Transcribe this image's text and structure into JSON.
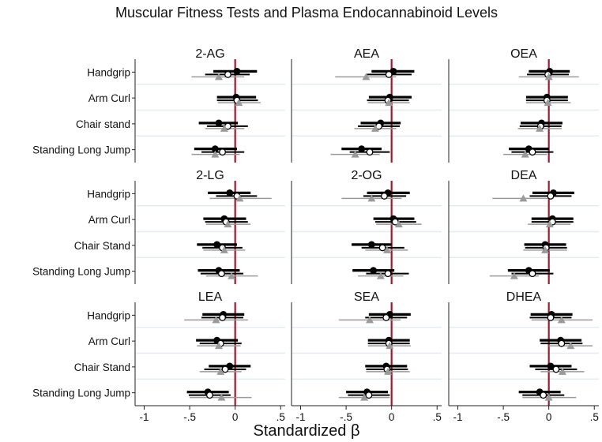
{
  "chart_data": {
    "type": "forest",
    "title": "Muscular Fitness Tests and Plasma Endocannabinoid Levels",
    "xlabel": "Standardized β",
    "xlim": [
      -1.1,
      0.55
    ],
    "xticks": [
      -1,
      -0.5,
      0,
      0.5
    ],
    "xtick_labels": [
      "-1",
      "-.5",
      "0",
      ".5"
    ],
    "reference_line": 0,
    "colors": {
      "reference_line": "#9b1b30",
      "black_series": "#000000",
      "grey_series": "#9a9a9a",
      "white_series_fill": "#ffffff"
    },
    "marker_series": [
      {
        "marker": "filled-circle",
        "color": "#000000"
      },
      {
        "marker": "hollow-circle",
        "color": "#000000"
      },
      {
        "marker": "triangle",
        "color": "#9a9a9a"
      }
    ],
    "panels": [
      {
        "title": "2-AG",
        "row_labels": [
          "Handgrip",
          "Arm Curl",
          "Chair stand",
          "Standing Long Jump"
        ],
        "estimates": [
          [
            {
              "est": 0.02,
              "lo": -0.24,
              "hi": 0.24
            },
            {
              "est": -0.08,
              "lo": -0.33,
              "hi": 0.16
            },
            {
              "est": -0.18,
              "lo": -0.48,
              "hi": 0.1
            }
          ],
          [
            {
              "est": 0.01,
              "lo": -0.2,
              "hi": 0.23
            },
            {
              "est": 0.02,
              "lo": -0.2,
              "hi": 0.25
            },
            {
              "est": 0.04,
              "lo": -0.19,
              "hi": 0.28
            }
          ],
          [
            {
              "est": -0.18,
              "lo": -0.4,
              "hi": 0.03
            },
            {
              "est": -0.08,
              "lo": -0.31,
              "hi": 0.14
            },
            {
              "est": -0.12,
              "lo": -0.33,
              "hi": 0.1
            }
          ],
          [
            {
              "est": -0.22,
              "lo": -0.45,
              "hi": 0.02
            },
            {
              "est": -0.14,
              "lo": -0.37,
              "hi": 0.1
            },
            {
              "est": -0.22,
              "lo": -0.48,
              "hi": 0.05
            }
          ]
        ]
      },
      {
        "title": "AEA",
        "row_labels": [
          "Handgrip",
          "Arm Curl",
          "Chair stand",
          "Standing Long Jump"
        ],
        "estimates": [
          [
            {
              "est": 0.02,
              "lo": -0.22,
              "hi": 0.25
            },
            {
              "est": -0.03,
              "lo": -0.27,
              "hi": 0.22
            },
            {
              "est": -0.28,
              "lo": -0.62,
              "hi": 0.05
            }
          ],
          [
            {
              "est": -0.02,
              "lo": -0.25,
              "hi": 0.22
            },
            {
              "est": -0.04,
              "lo": -0.27,
              "hi": 0.19
            },
            {
              "est": -0.03,
              "lo": -0.26,
              "hi": 0.2
            }
          ],
          [
            {
              "est": -0.12,
              "lo": -0.34,
              "hi": 0.1
            },
            {
              "est": -0.14,
              "lo": -0.37,
              "hi": 0.09
            },
            {
              "est": -0.18,
              "lo": -0.41,
              "hi": 0.05
            }
          ],
          [
            {
              "est": -0.33,
              "lo": -0.55,
              "hi": -0.11
            },
            {
              "est": -0.24,
              "lo": -0.46,
              "hi": -0.02
            },
            {
              "est": -0.4,
              "lo": -0.67,
              "hi": -0.13
            }
          ]
        ]
      },
      {
        "title": "OEA",
        "row_labels": [
          "Handgrip",
          "Arm Curl",
          "Chair stand",
          "Standing Long Jump"
        ],
        "estimates": [
          [
            {
              "est": 0.01,
              "lo": -0.22,
              "hi": 0.23
            },
            {
              "est": -0.01,
              "lo": -0.24,
              "hi": 0.22
            },
            {
              "est": 0.0,
              "lo": -0.33,
              "hi": 0.33
            }
          ],
          [
            {
              "est": -0.02,
              "lo": -0.25,
              "hi": 0.21
            },
            {
              "est": -0.02,
              "lo": -0.25,
              "hi": 0.21
            },
            {
              "est": -0.01,
              "lo": -0.25,
              "hi": 0.24
            }
          ],
          [
            {
              "est": -0.08,
              "lo": -0.31,
              "hi": 0.15
            },
            {
              "est": -0.09,
              "lo": -0.32,
              "hi": 0.14
            },
            {
              "est": -0.1,
              "lo": -0.34,
              "hi": 0.14
            }
          ],
          [
            {
              "est": -0.22,
              "lo": -0.44,
              "hi": 0.0
            },
            {
              "est": -0.18,
              "lo": -0.41,
              "hi": 0.05
            },
            {
              "est": -0.26,
              "lo": -0.5,
              "hi": -0.02
            }
          ]
        ]
      },
      {
        "title": "2-LG",
        "row_labels": [
          "Handgrip",
          "Arm Curl",
          "Chair Stand",
          "Standing Long Jump"
        ],
        "estimates": [
          [
            {
              "est": -0.06,
              "lo": -0.3,
              "hi": 0.17
            },
            {
              "est": 0.02,
              "lo": -0.21,
              "hi": 0.24
            },
            {
              "est": 0.05,
              "lo": -0.28,
              "hi": 0.4
            }
          ],
          [
            {
              "est": -0.12,
              "lo": -0.35,
              "hi": 0.12
            },
            {
              "est": -0.1,
              "lo": -0.33,
              "hi": 0.14
            },
            {
              "est": -0.08,
              "lo": -0.32,
              "hi": 0.17
            }
          ],
          [
            {
              "est": -0.2,
              "lo": -0.42,
              "hi": 0.02
            },
            {
              "est": -0.14,
              "lo": -0.36,
              "hi": 0.08
            },
            {
              "est": -0.12,
              "lo": -0.35,
              "hi": 0.11
            }
          ],
          [
            {
              "est": -0.18,
              "lo": -0.41,
              "hi": 0.05
            },
            {
              "est": -0.15,
              "lo": -0.38,
              "hi": 0.09
            },
            {
              "est": -0.04,
              "lo": -0.32,
              "hi": 0.25
            }
          ]
        ]
      },
      {
        "title": "2-OG",
        "row_labels": [
          "Handgrip",
          "Arm Curl",
          "Chair Stand",
          "Standing Long Jump"
        ],
        "estimates": [
          [
            {
              "est": -0.04,
              "lo": -0.27,
              "hi": 0.2
            },
            {
              "est": -0.08,
              "lo": -0.31,
              "hi": 0.16
            },
            {
              "est": -0.22,
              "lo": -0.55,
              "hi": 0.11
            }
          ],
          [
            {
              "est": 0.02,
              "lo": -0.2,
              "hi": 0.25
            },
            {
              "est": 0.04,
              "lo": -0.18,
              "hi": 0.27
            },
            {
              "est": 0.08,
              "lo": -0.17,
              "hi": 0.33
            }
          ],
          [
            {
              "est": -0.22,
              "lo": -0.44,
              "hi": 0.0
            },
            {
              "est": -0.1,
              "lo": -0.33,
              "hi": 0.14
            },
            {
              "est": -0.05,
              "lo": -0.29,
              "hi": 0.18
            }
          ],
          [
            {
              "est": -0.2,
              "lo": -0.43,
              "hi": 0.03
            },
            {
              "est": -0.04,
              "lo": -0.28,
              "hi": 0.19
            },
            {
              "est": -0.12,
              "lo": -0.37,
              "hi": 0.13
            }
          ]
        ]
      },
      {
        "title": "DEA",
        "row_labels": [
          "Handgrip",
          "Arm Curl",
          "Chair Stand",
          "Standing Long Jump"
        ],
        "estimates": [
          [
            {
              "est": 0.05,
              "lo": -0.18,
              "hi": 0.28
            },
            {
              "est": 0.02,
              "lo": -0.21,
              "hi": 0.25
            },
            {
              "est": -0.28,
              "lo": -0.62,
              "hi": 0.05
            }
          ],
          [
            {
              "est": 0.04,
              "lo": -0.19,
              "hi": 0.27
            },
            {
              "est": 0.04,
              "lo": -0.19,
              "hi": 0.27
            },
            {
              "est": 0.01,
              "lo": -0.23,
              "hi": 0.24
            }
          ],
          [
            {
              "est": -0.04,
              "lo": -0.27,
              "hi": 0.19
            },
            {
              "est": -0.03,
              "lo": -0.26,
              "hi": 0.2
            },
            {
              "est": -0.04,
              "lo": -0.28,
              "hi": 0.2
            }
          ],
          [
            {
              "est": -0.22,
              "lo": -0.45,
              "hi": 0.01
            },
            {
              "est": -0.18,
              "lo": -0.41,
              "hi": 0.05
            },
            {
              "est": -0.38,
              "lo": -0.65,
              "hi": -0.11
            }
          ]
        ]
      },
      {
        "title": "LEA",
        "row_labels": [
          "Handgrip",
          "Arm Curl",
          "Chair Stand",
          "Standing Long Jump"
        ],
        "estimates": [
          [
            {
              "est": -0.13,
              "lo": -0.36,
              "hi": 0.1
            },
            {
              "est": -0.14,
              "lo": -0.37,
              "hi": 0.09
            },
            {
              "est": -0.21,
              "lo": -0.56,
              "hi": 0.14
            }
          ],
          [
            {
              "est": -0.2,
              "lo": -0.43,
              "hi": 0.03
            },
            {
              "est": -0.16,
              "lo": -0.39,
              "hi": 0.07
            },
            {
              "est": -0.18,
              "lo": -0.42,
              "hi": 0.06
            }
          ],
          [
            {
              "est": -0.06,
              "lo": -0.29,
              "hi": 0.17
            },
            {
              "est": -0.11,
              "lo": -0.34,
              "hi": 0.12
            },
            {
              "est": -0.16,
              "lo": -0.39,
              "hi": 0.07
            }
          ],
          [
            {
              "est": -0.3,
              "lo": -0.53,
              "hi": -0.07
            },
            {
              "est": -0.28,
              "lo": -0.51,
              "hi": -0.05
            },
            {
              "est": -0.15,
              "lo": -0.5,
              "hi": 0.18
            }
          ]
        ]
      },
      {
        "title": "SEA",
        "row_labels": [
          "Handgrip",
          "Arm Curl",
          "Chair Stand",
          "Standing Long Jump"
        ],
        "estimates": [
          [
            {
              "est": -0.02,
              "lo": -0.25,
              "hi": 0.21
            },
            {
              "est": -0.06,
              "lo": -0.29,
              "hi": 0.17
            },
            {
              "est": -0.24,
              "lo": -0.58,
              "hi": 0.1
            }
          ],
          [
            {
              "est": -0.03,
              "lo": -0.26,
              "hi": 0.2
            },
            {
              "est": -0.03,
              "lo": -0.26,
              "hi": 0.2
            },
            {
              "est": -0.02,
              "lo": -0.26,
              "hi": 0.21
            }
          ],
          [
            {
              "est": -0.06,
              "lo": -0.29,
              "hi": 0.17
            },
            {
              "est": -0.05,
              "lo": -0.28,
              "hi": 0.18
            },
            {
              "est": -0.04,
              "lo": -0.28,
              "hi": 0.2
            }
          ],
          [
            {
              "est": -0.27,
              "lo": -0.5,
              "hi": -0.04
            },
            {
              "est": -0.25,
              "lo": -0.48,
              "hi": -0.02
            },
            {
              "est": -0.3,
              "lo": -0.58,
              "hi": -0.02
            }
          ]
        ]
      },
      {
        "title": "DHEA",
        "row_labels": [
          "Handgrip",
          "Arm Curl",
          "Chair Stand",
          "Standing Long Jump"
        ],
        "estimates": [
          [
            {
              "est": 0.03,
              "lo": -0.2,
              "hi": 0.26
            },
            {
              "est": 0.02,
              "lo": -0.21,
              "hi": 0.25
            },
            {
              "est": 0.14,
              "lo": -0.19,
              "hi": 0.48
            }
          ],
          [
            {
              "est": 0.13,
              "lo": -0.1,
              "hi": 0.36
            },
            {
              "est": 0.14,
              "lo": -0.09,
              "hi": 0.37
            },
            {
              "est": 0.24,
              "lo": 0.0,
              "hi": 0.48
            }
          ],
          [
            {
              "est": 0.02,
              "lo": -0.21,
              "hi": 0.25
            },
            {
              "est": 0.08,
              "lo": -0.15,
              "hi": 0.31
            },
            {
              "est": 0.15,
              "lo": -0.09,
              "hi": 0.39
            }
          ],
          [
            {
              "est": -0.1,
              "lo": -0.33,
              "hi": 0.13
            },
            {
              "est": -0.06,
              "lo": -0.29,
              "hi": 0.17
            },
            {
              "est": 0.0,
              "lo": -0.29,
              "hi": 0.3
            }
          ]
        ]
      }
    ]
  }
}
